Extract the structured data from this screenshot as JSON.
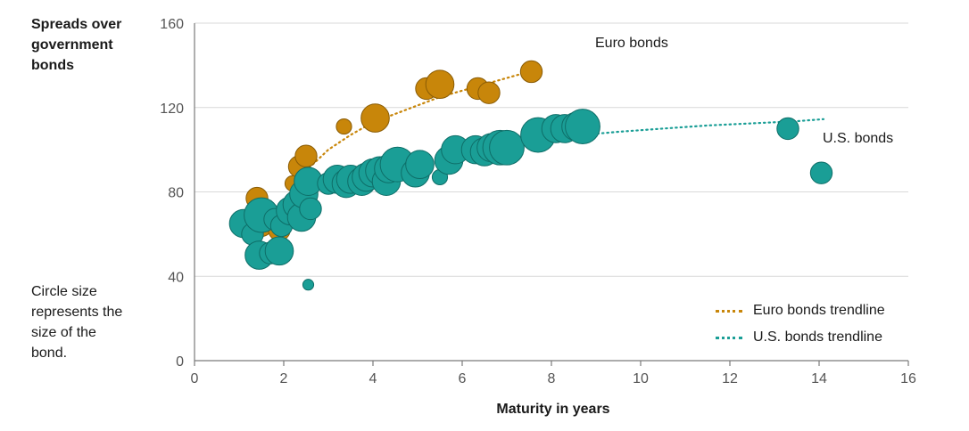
{
  "chart_data": {
    "type": "scatter",
    "ylabel": "Spreads over government bonds",
    "xlabel": "Maturity in years",
    "xlim": [
      0,
      16
    ],
    "ylim": [
      0,
      160
    ],
    "xticks": [
      0,
      2,
      4,
      6,
      8,
      10,
      12,
      14,
      16
    ],
    "yticks": [
      0,
      40,
      80,
      120,
      160
    ],
    "grid": "horizontal",
    "note": "Circle size represents the size of the bond.",
    "series": [
      {
        "name": "Euro bonds",
        "color": "#c8860a",
        "points": [
          {
            "x": 1.4,
            "y": 77,
            "size": 2
          },
          {
            "x": 1.5,
            "y": 64,
            "size": 2
          },
          {
            "x": 1.9,
            "y": 62,
            "size": 2
          },
          {
            "x": 2.2,
            "y": 84,
            "size": 1
          },
          {
            "x": 2.35,
            "y": 92,
            "size": 2
          },
          {
            "x": 2.5,
            "y": 97,
            "size": 2
          },
          {
            "x": 3.35,
            "y": 111,
            "size": 1
          },
          {
            "x": 4.05,
            "y": 115,
            "size": 3
          },
          {
            "x": 5.2,
            "y": 129,
            "size": 2
          },
          {
            "x": 5.5,
            "y": 131,
            "size": 3
          },
          {
            "x": 6.35,
            "y": 129,
            "size": 2
          },
          {
            "x": 6.6,
            "y": 127,
            "size": 2
          },
          {
            "x": 7.55,
            "y": 137,
            "size": 2
          }
        ]
      },
      {
        "name": "U.S. bonds",
        "color": "#1a9e96",
        "points": [
          {
            "x": 1.1,
            "y": 65,
            "size": 3
          },
          {
            "x": 1.3,
            "y": 60,
            "size": 2
          },
          {
            "x": 1.5,
            "y": 69,
            "size": 4
          },
          {
            "x": 1.45,
            "y": 50,
            "size": 3
          },
          {
            "x": 1.7,
            "y": 51,
            "size": 2
          },
          {
            "x": 1.9,
            "y": 52,
            "size": 3
          },
          {
            "x": 1.8,
            "y": 67,
            "size": 2
          },
          {
            "x": 1.95,
            "y": 64,
            "size": 2
          },
          {
            "x": 2.15,
            "y": 71,
            "size": 3
          },
          {
            "x": 2.3,
            "y": 74,
            "size": 3
          },
          {
            "x": 2.4,
            "y": 68,
            "size": 3
          },
          {
            "x": 2.45,
            "y": 79,
            "size": 3
          },
          {
            "x": 2.6,
            "y": 72,
            "size": 2
          },
          {
            "x": 2.55,
            "y": 36,
            "size": 0.3
          },
          {
            "x": 2.55,
            "y": 85,
            "size": 3
          },
          {
            "x": 3.0,
            "y": 84,
            "size": 2
          },
          {
            "x": 3.2,
            "y": 86,
            "size": 3
          },
          {
            "x": 3.4,
            "y": 84,
            "size": 3
          },
          {
            "x": 3.5,
            "y": 86,
            "size": 3
          },
          {
            "x": 3.75,
            "y": 85,
            "size": 3
          },
          {
            "x": 3.85,
            "y": 87,
            "size": 3
          },
          {
            "x": 4.0,
            "y": 89,
            "size": 3
          },
          {
            "x": 4.15,
            "y": 90,
            "size": 3
          },
          {
            "x": 4.3,
            "y": 85,
            "size": 3
          },
          {
            "x": 4.35,
            "y": 91,
            "size": 3
          },
          {
            "x": 4.55,
            "y": 93,
            "size": 4
          },
          {
            "x": 4.95,
            "y": 89,
            "size": 3
          },
          {
            "x": 5.05,
            "y": 93,
            "size": 3
          },
          {
            "x": 5.5,
            "y": 87,
            "size": 1
          },
          {
            "x": 5.7,
            "y": 95,
            "size": 3
          },
          {
            "x": 5.85,
            "y": 100,
            "size": 3
          },
          {
            "x": 6.3,
            "y": 100,
            "size": 3
          },
          {
            "x": 6.5,
            "y": 99,
            "size": 3
          },
          {
            "x": 6.65,
            "y": 101,
            "size": 3
          },
          {
            "x": 6.85,
            "y": 101,
            "size": 4
          },
          {
            "x": 7.0,
            "y": 101,
            "size": 4
          },
          {
            "x": 7.7,
            "y": 107,
            "size": 4
          },
          {
            "x": 8.1,
            "y": 110,
            "size": 3
          },
          {
            "x": 8.3,
            "y": 110,
            "size": 3
          },
          {
            "x": 8.55,
            "y": 111,
            "size": 3
          },
          {
            "x": 8.7,
            "y": 111,
            "size": 4
          },
          {
            "x": 13.3,
            "y": 110,
            "size": 2
          },
          {
            "x": 14.05,
            "y": 89,
            "size": 2
          }
        ]
      }
    ],
    "trendlines": [
      {
        "name": "Euro bonds trendline",
        "color": "#c8860a",
        "points": [
          [
            1.9,
            73
          ],
          [
            2.5,
            90
          ],
          [
            3.0,
            100
          ],
          [
            3.5,
            107
          ],
          [
            4.0,
            113
          ],
          [
            4.5,
            117
          ],
          [
            5.0,
            121
          ],
          [
            5.5,
            125
          ],
          [
            6.0,
            128
          ],
          [
            6.5,
            131
          ],
          [
            7.0,
            134
          ],
          [
            7.5,
            137
          ]
        ]
      },
      {
        "name": "U.S. bonds trendline",
        "color": "#1a9e96",
        "points": [
          [
            8.7,
            107
          ],
          [
            9.5,
            108.5
          ],
          [
            10.5,
            110
          ],
          [
            11.5,
            111.5
          ],
          [
            12.5,
            112.5
          ],
          [
            13.5,
            113.5
          ],
          [
            14.1,
            114.5
          ]
        ]
      }
    ],
    "legend": {
      "placement": "bottom-right",
      "items": [
        "Euro bonds trendline",
        "U.S. bonds trendline"
      ]
    }
  },
  "labels": {
    "ytitle": "Spreads over government bonds",
    "xtitle": "Maturity in years",
    "note": "Circle size represents the size of the bond.",
    "euro_series": "Euro bonds",
    "us_series": "U.S. bonds",
    "legend_euro": "Euro bonds trendline",
    "legend_us": "U.S. bonds trendline"
  },
  "colors": {
    "euro": "#c8860a",
    "us": "#1a9e96",
    "grid": "#d9d9d9",
    "axis": "#7a7a7a",
    "tick_text": "#555555"
  }
}
